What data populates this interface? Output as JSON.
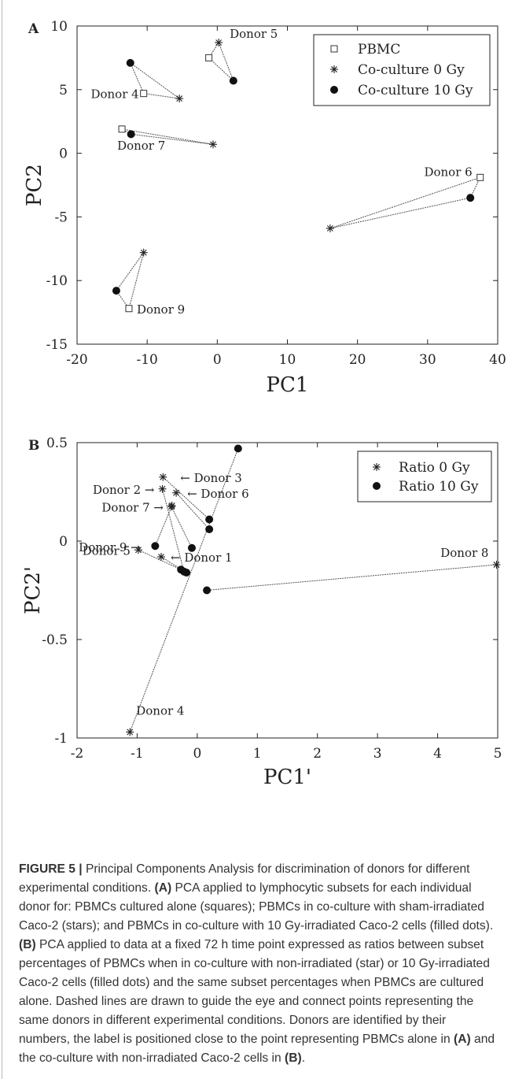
{
  "chart_data": [
    {
      "panel": "A",
      "type": "scatter",
      "xlabel": "PC1",
      "ylabel": "PC2",
      "xlim": [
        -20,
        40
      ],
      "ylim": [
        -15,
        10
      ],
      "xticks": [
        -20,
        -10,
        0,
        10,
        20,
        30,
        40
      ],
      "yticks": [
        -15,
        -10,
        -5,
        0,
        5,
        10
      ],
      "legend_position": "top-right",
      "series": [
        {
          "name": "PBMC",
          "marker": "square"
        },
        {
          "name": "Co-culture 0 Gy",
          "marker": "star"
        },
        {
          "name": "Co-culture 10 Gy",
          "marker": "dot"
        }
      ],
      "donors": [
        {
          "label": "Donor 5",
          "pbmc": [
            -1.2,
            7.5
          ],
          "c0": [
            0.2,
            8.7
          ],
          "c10": [
            2.3,
            5.7
          ]
        },
        {
          "label": "Donor 4",
          "pbmc": [
            -10.5,
            4.7
          ],
          "c0": [
            -5.4,
            4.3
          ],
          "c10": [
            -12.4,
            7.1
          ]
        },
        {
          "label": "Donor 7",
          "pbmc": [
            -13.6,
            1.9
          ],
          "c0": [
            -0.6,
            0.7
          ],
          "c10": [
            -12.3,
            1.5
          ]
        },
        {
          "label": "Donor 6",
          "pbmc": [
            37.5,
            -1.9
          ],
          "c0": [
            16.1,
            -5.9
          ],
          "c10": [
            36.1,
            -3.5
          ]
        },
        {
          "label": "Donor 9",
          "pbmc": [
            -12.6,
            -12.2
          ],
          "c0": [
            -10.5,
            -7.8
          ],
          "c10": [
            -14.4,
            -10.8
          ]
        }
      ]
    },
    {
      "panel": "B",
      "type": "scatter",
      "xlabel": "PC1'",
      "ylabel": "PC2'",
      "xlim": [
        -2,
        5
      ],
      "ylim": [
        -1,
        0.5
      ],
      "xticks": [
        -2,
        -1,
        0,
        1,
        2,
        3,
        4,
        5
      ],
      "yticks": [
        -1,
        -0.5,
        0,
        0.5
      ],
      "legend_position": "top-right",
      "series": [
        {
          "name": "Ratio 0 Gy",
          "marker": "star"
        },
        {
          "name": "Ratio 10 Gy",
          "marker": "dot"
        }
      ],
      "donors": [
        {
          "label": "Donor 3",
          "r0": [
            -0.57,
            0.325
          ],
          "r10": [
            0.2,
            0.11
          ]
        },
        {
          "label": "Donor 2",
          "r0": [
            -0.58,
            0.265
          ],
          "r10": [
            -0.22,
            -0.155
          ]
        },
        {
          "label": "Donor 6",
          "r0": [
            -0.35,
            0.245
          ],
          "r10": [
            0.2,
            0.06
          ]
        },
        {
          "label": "Donor 7",
          "r0": [
            -0.43,
            0.175
          ],
          "r10": [
            -0.09,
            -0.035
          ]
        },
        {
          "label": "Donor 9",
          "r0": [
            -0.42,
            0.18
          ],
          "r10": [
            -0.7,
            -0.025
          ]
        },
        {
          "label": "Donor 5",
          "r0": [
            -0.98,
            -0.045
          ],
          "r10": [
            -0.27,
            -0.145
          ]
        },
        {
          "label": "Donor 1",
          "r0": [
            -0.6,
            -0.08
          ],
          "r10": [
            -0.18,
            -0.16
          ]
        },
        {
          "label": "Donor 8",
          "r0": [
            4.98,
            -0.12
          ],
          "r10": [
            0.16,
            -0.25
          ]
        },
        {
          "label": "Donor 4",
          "r0": [
            -1.12,
            -0.97
          ],
          "r10": [
            0.68,
            0.47
          ]
        }
      ]
    }
  ],
  "caption": {
    "figure_label": "FIGURE 5 |",
    "intro": " Principal Components Analysis for discrimination of donors for different experimental conditions. ",
    "a_label": "(A)",
    "a_text": " PCA applied to lymphocytic subsets for each individual donor for: PBMCs cultured alone (squares); PBMCs in co-culture with sham-irradiated Caco-2 (stars); and PBMCs in co-culture with 10 Gy-irradiated Caco-2 cells (filled dots). ",
    "b_label": "(B)",
    "b_text": " PCA applied to data at a fixed 72 h time point expressed as ratios between subset percentages of PBMCs when in co-culture with non-irradiated (star) or 10 Gy-irradiated Caco-2 cells (filled dots) and the same subset percentages when PBMCs are cultured alone. Dashed lines are drawn to guide the eye and connect points representing the same donors in different experimental conditions. Donors are identified by their numbers, the label is positioned close to the point representing PBMCs alone in ",
    "ref_a": "(A)",
    "mid": " and the co-culture with non-irradiated Caco-2 cells in ",
    "ref_b": "(B)",
    "end": "."
  }
}
